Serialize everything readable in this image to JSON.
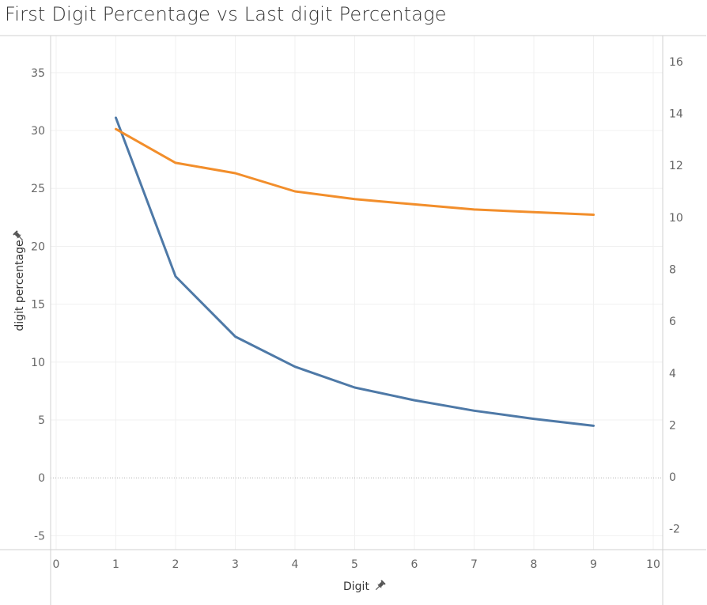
{
  "title": "First Digit Percentage vs Last digit Percentage",
  "pin_icon": "pin-icon",
  "chart_data": {
    "type": "line",
    "xlabel": "Digit",
    "ylabel": "digit percentage",
    "x": [
      1,
      2,
      3,
      4,
      5,
      6,
      7,
      8,
      9
    ],
    "xlim": [
      -0.1,
      10.1
    ],
    "xticks": [
      0,
      1,
      2,
      3,
      4,
      5,
      6,
      7,
      8,
      9,
      10
    ],
    "y_left": {
      "lim": [
        -6.2,
        38.2
      ],
      "ticks": [
        -5,
        0,
        5,
        10,
        15,
        20,
        25,
        30,
        35
      ]
    },
    "y_right": {
      "lim": [
        -2.8,
        17.0
      ],
      "ticks": [
        -2,
        0,
        2,
        4,
        6,
        8,
        10,
        12,
        14,
        16
      ]
    },
    "zero_line": true,
    "grid": true,
    "series": [
      {
        "color": "#4e79a7",
        "axis": "left",
        "values": [
          31.1,
          17.4,
          12.2,
          9.6,
          7.8,
          6.7,
          5.8,
          5.1,
          4.5
        ]
      },
      {
        "color": "#f28e2b",
        "axis": "right",
        "values": [
          13.4,
          12.1,
          11.7,
          11.0,
          10.7,
          10.5,
          10.3,
          10.2,
          10.1
        ]
      }
    ]
  }
}
